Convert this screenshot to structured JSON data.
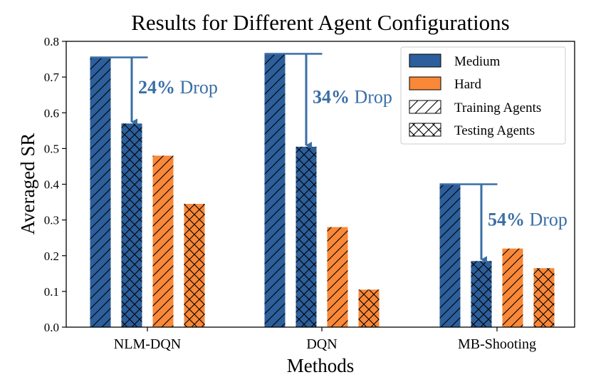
{
  "colors": {
    "medium": "#2c5f9b",
    "hard": "#f98838",
    "arrow": "#3a6ea5",
    "frame": "#000000"
  },
  "chart_data": {
    "type": "bar",
    "title": "Results for Different Agent Configurations",
    "xlabel": "Methods",
    "ylabel": "Averaged SR",
    "ylim": [
      0,
      0.8
    ],
    "yticks": [
      "0.0",
      "0.1",
      "0.2",
      "0.3",
      "0.4",
      "0.5",
      "0.6",
      "0.7",
      "0.8"
    ],
    "categories": [
      "NLM-DQN",
      "DQN",
      "MB-Shooting"
    ],
    "series": [
      {
        "name": "Medium - Training Agents",
        "difficulty": "medium",
        "hatch": "diagonal",
        "values": [
          0.755,
          0.765,
          0.4
        ]
      },
      {
        "name": "Medium - Testing Agents",
        "difficulty": "medium",
        "hatch": "cross",
        "values": [
          0.57,
          0.505,
          0.185
        ]
      },
      {
        "name": "Hard - Training Agents",
        "difficulty": "hard",
        "hatch": "diagonal",
        "values": [
          0.48,
          0.28,
          0.22
        ]
      },
      {
        "name": "Hard - Testing Agents",
        "difficulty": "hard",
        "hatch": "cross",
        "values": [
          0.345,
          0.105,
          0.165
        ]
      }
    ],
    "legend": {
      "position": "top-right",
      "items": [
        {
          "label": "Medium",
          "swatch": "medium"
        },
        {
          "label": "Hard",
          "swatch": "hard"
        },
        {
          "label": "Training Agents",
          "swatch": "diagonal"
        },
        {
          "label": "Testing Agents",
          "swatch": "cross"
        }
      ]
    },
    "annotations": [
      {
        "category": "NLM-DQN",
        "from": 0.755,
        "to": 0.57,
        "percent": "24%",
        "word": "Drop"
      },
      {
        "category": "DQN",
        "from": 0.765,
        "to": 0.505,
        "percent": "34%",
        "word": "Drop"
      },
      {
        "category": "MB-Shooting",
        "from": 0.4,
        "to": 0.185,
        "percent": "54%",
        "word": "Drop"
      }
    ]
  }
}
